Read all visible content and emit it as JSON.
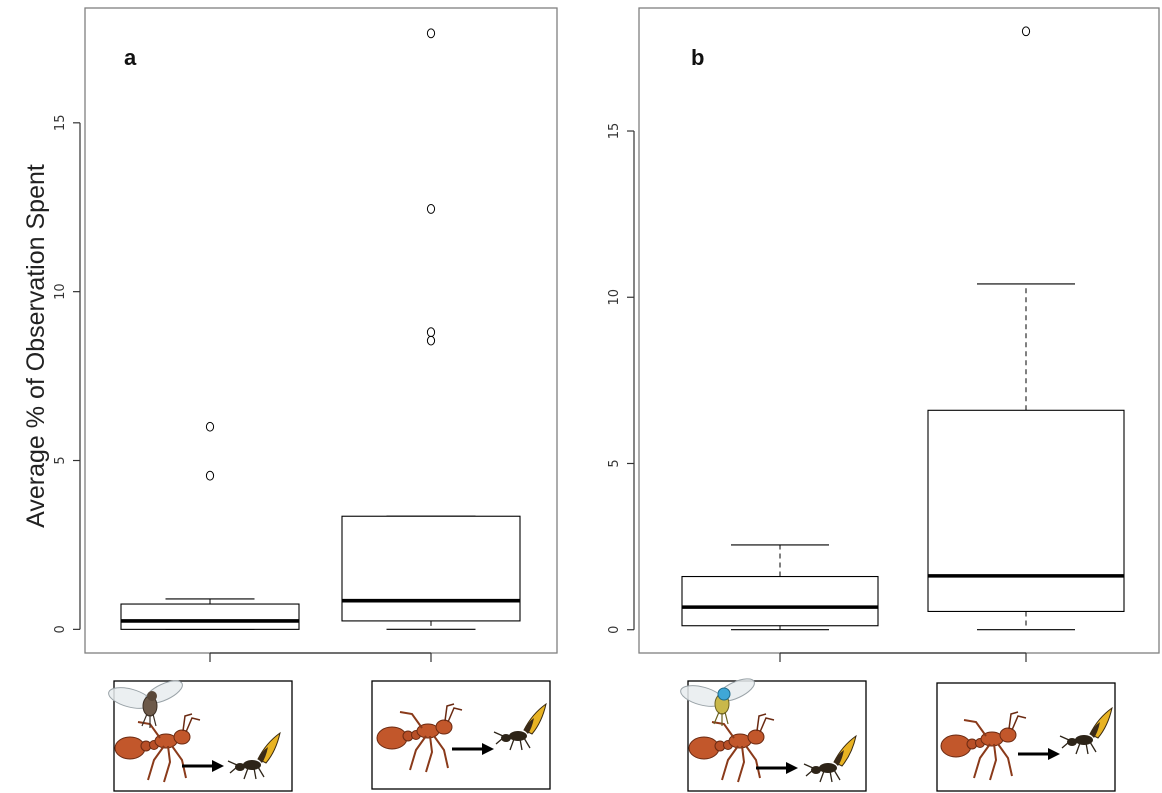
{
  "figure": {
    "ylabel": "Average % of Observation Spent"
  },
  "chart_data": [
    {
      "type": "box",
      "panel_label": "a",
      "ylabel": "Average % of Observation Spent",
      "yticks": [
        0,
        5,
        10,
        15
      ],
      "ylim": [
        -0.7,
        18.4
      ],
      "grid": false,
      "groups": [
        {
          "category_icon": "fly-on-ant-to-wasp-icon",
          "min": 0,
          "q1": 0.0,
          "median": 0.25,
          "q3": 0.75,
          "max": 0.9,
          "outliers": [
            4.55,
            6.0
          ]
        },
        {
          "category_icon": "ant-to-wasp-icon",
          "min": 0,
          "q1": 0.25,
          "median": 0.85,
          "q3": 3.35,
          "max": 3.35,
          "outliers": [
            8.55,
            8.8,
            12.45,
            17.65
          ]
        }
      ]
    },
    {
      "type": "box",
      "panel_label": "b",
      "ylabel": "",
      "yticks": [
        0,
        5,
        10,
        15
      ],
      "ylim": [
        -0.7,
        18.7
      ],
      "grid": false,
      "groups": [
        {
          "category_icon": "fly-on-ant-to-wasp-icon",
          "min": 0,
          "q1": 0.12,
          "median": 0.68,
          "q3": 1.6,
          "max": 2.55,
          "outliers": []
        },
        {
          "category_icon": "ant-to-wasp-icon",
          "min": 0,
          "q1": 0.55,
          "median": 1.62,
          "q3": 6.6,
          "max": 10.4,
          "outliers": [
            18.0
          ]
        }
      ]
    }
  ]
}
